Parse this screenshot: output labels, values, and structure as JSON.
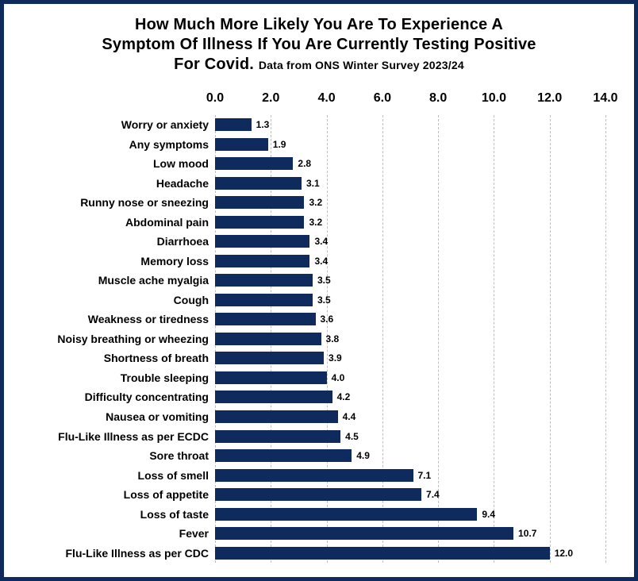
{
  "title": {
    "line1": "How Much More Likely You Are To Experience A",
    "line2": "Symptom Of Illness If You Are Currently Testing Positive",
    "line3": "For Covid.",
    "subtitle": "Data from ONS Winter Survey 2023/24"
  },
  "chart": {
    "type": "bar-horizontal",
    "xmin": 0.0,
    "xmax": 14.0,
    "xtick_step": 2.0,
    "xticks": [
      "0.0",
      "2.0",
      "4.0",
      "6.0",
      "8.0",
      "10.0",
      "12.0",
      "14.0"
    ],
    "bar_color": "#0f2a5c",
    "grid_color": "#bfbfbf",
    "background_color": "#ffffff",
    "border_color": "#0f2a5c",
    "label_fontsize": 14,
    "tick_fontsize": 16,
    "value_fontsize": 12,
    "data": [
      {
        "label": "Worry or anxiety",
        "value": 1.3
      },
      {
        "label": "Any symptoms",
        "value": 1.9
      },
      {
        "label": "Low mood",
        "value": 2.8
      },
      {
        "label": "Headache",
        "value": 3.1
      },
      {
        "label": "Runny nose or sneezing",
        "value": 3.2
      },
      {
        "label": "Abdominal pain",
        "value": 3.2
      },
      {
        "label": "Diarrhoea",
        "value": 3.4
      },
      {
        "label": "Memory loss",
        "value": 3.4
      },
      {
        "label": "Muscle ache myalgia",
        "value": 3.5
      },
      {
        "label": "Cough",
        "value": 3.5
      },
      {
        "label": "Weakness or tiredness",
        "value": 3.6
      },
      {
        "label": "Noisy breathing or wheezing",
        "value": 3.8
      },
      {
        "label": "Shortness of breath",
        "value": 3.9
      },
      {
        "label": "Trouble sleeping",
        "value": 4.0
      },
      {
        "label": "Difficulty concentrating",
        "value": 4.2
      },
      {
        "label": "Nausea or vomiting",
        "value": 4.4
      },
      {
        "label": "Flu-Like Illness as per ECDC",
        "value": 4.5
      },
      {
        "label": "Sore throat",
        "value": 4.9
      },
      {
        "label": "Loss of smell",
        "value": 7.1
      },
      {
        "label": "Loss of appetite",
        "value": 7.4
      },
      {
        "label": "Loss of taste",
        "value": 9.4
      },
      {
        "label": "Fever",
        "value": 10.7
      },
      {
        "label": "Flu-Like Illness as per CDC",
        "value": 12.0
      }
    ]
  }
}
